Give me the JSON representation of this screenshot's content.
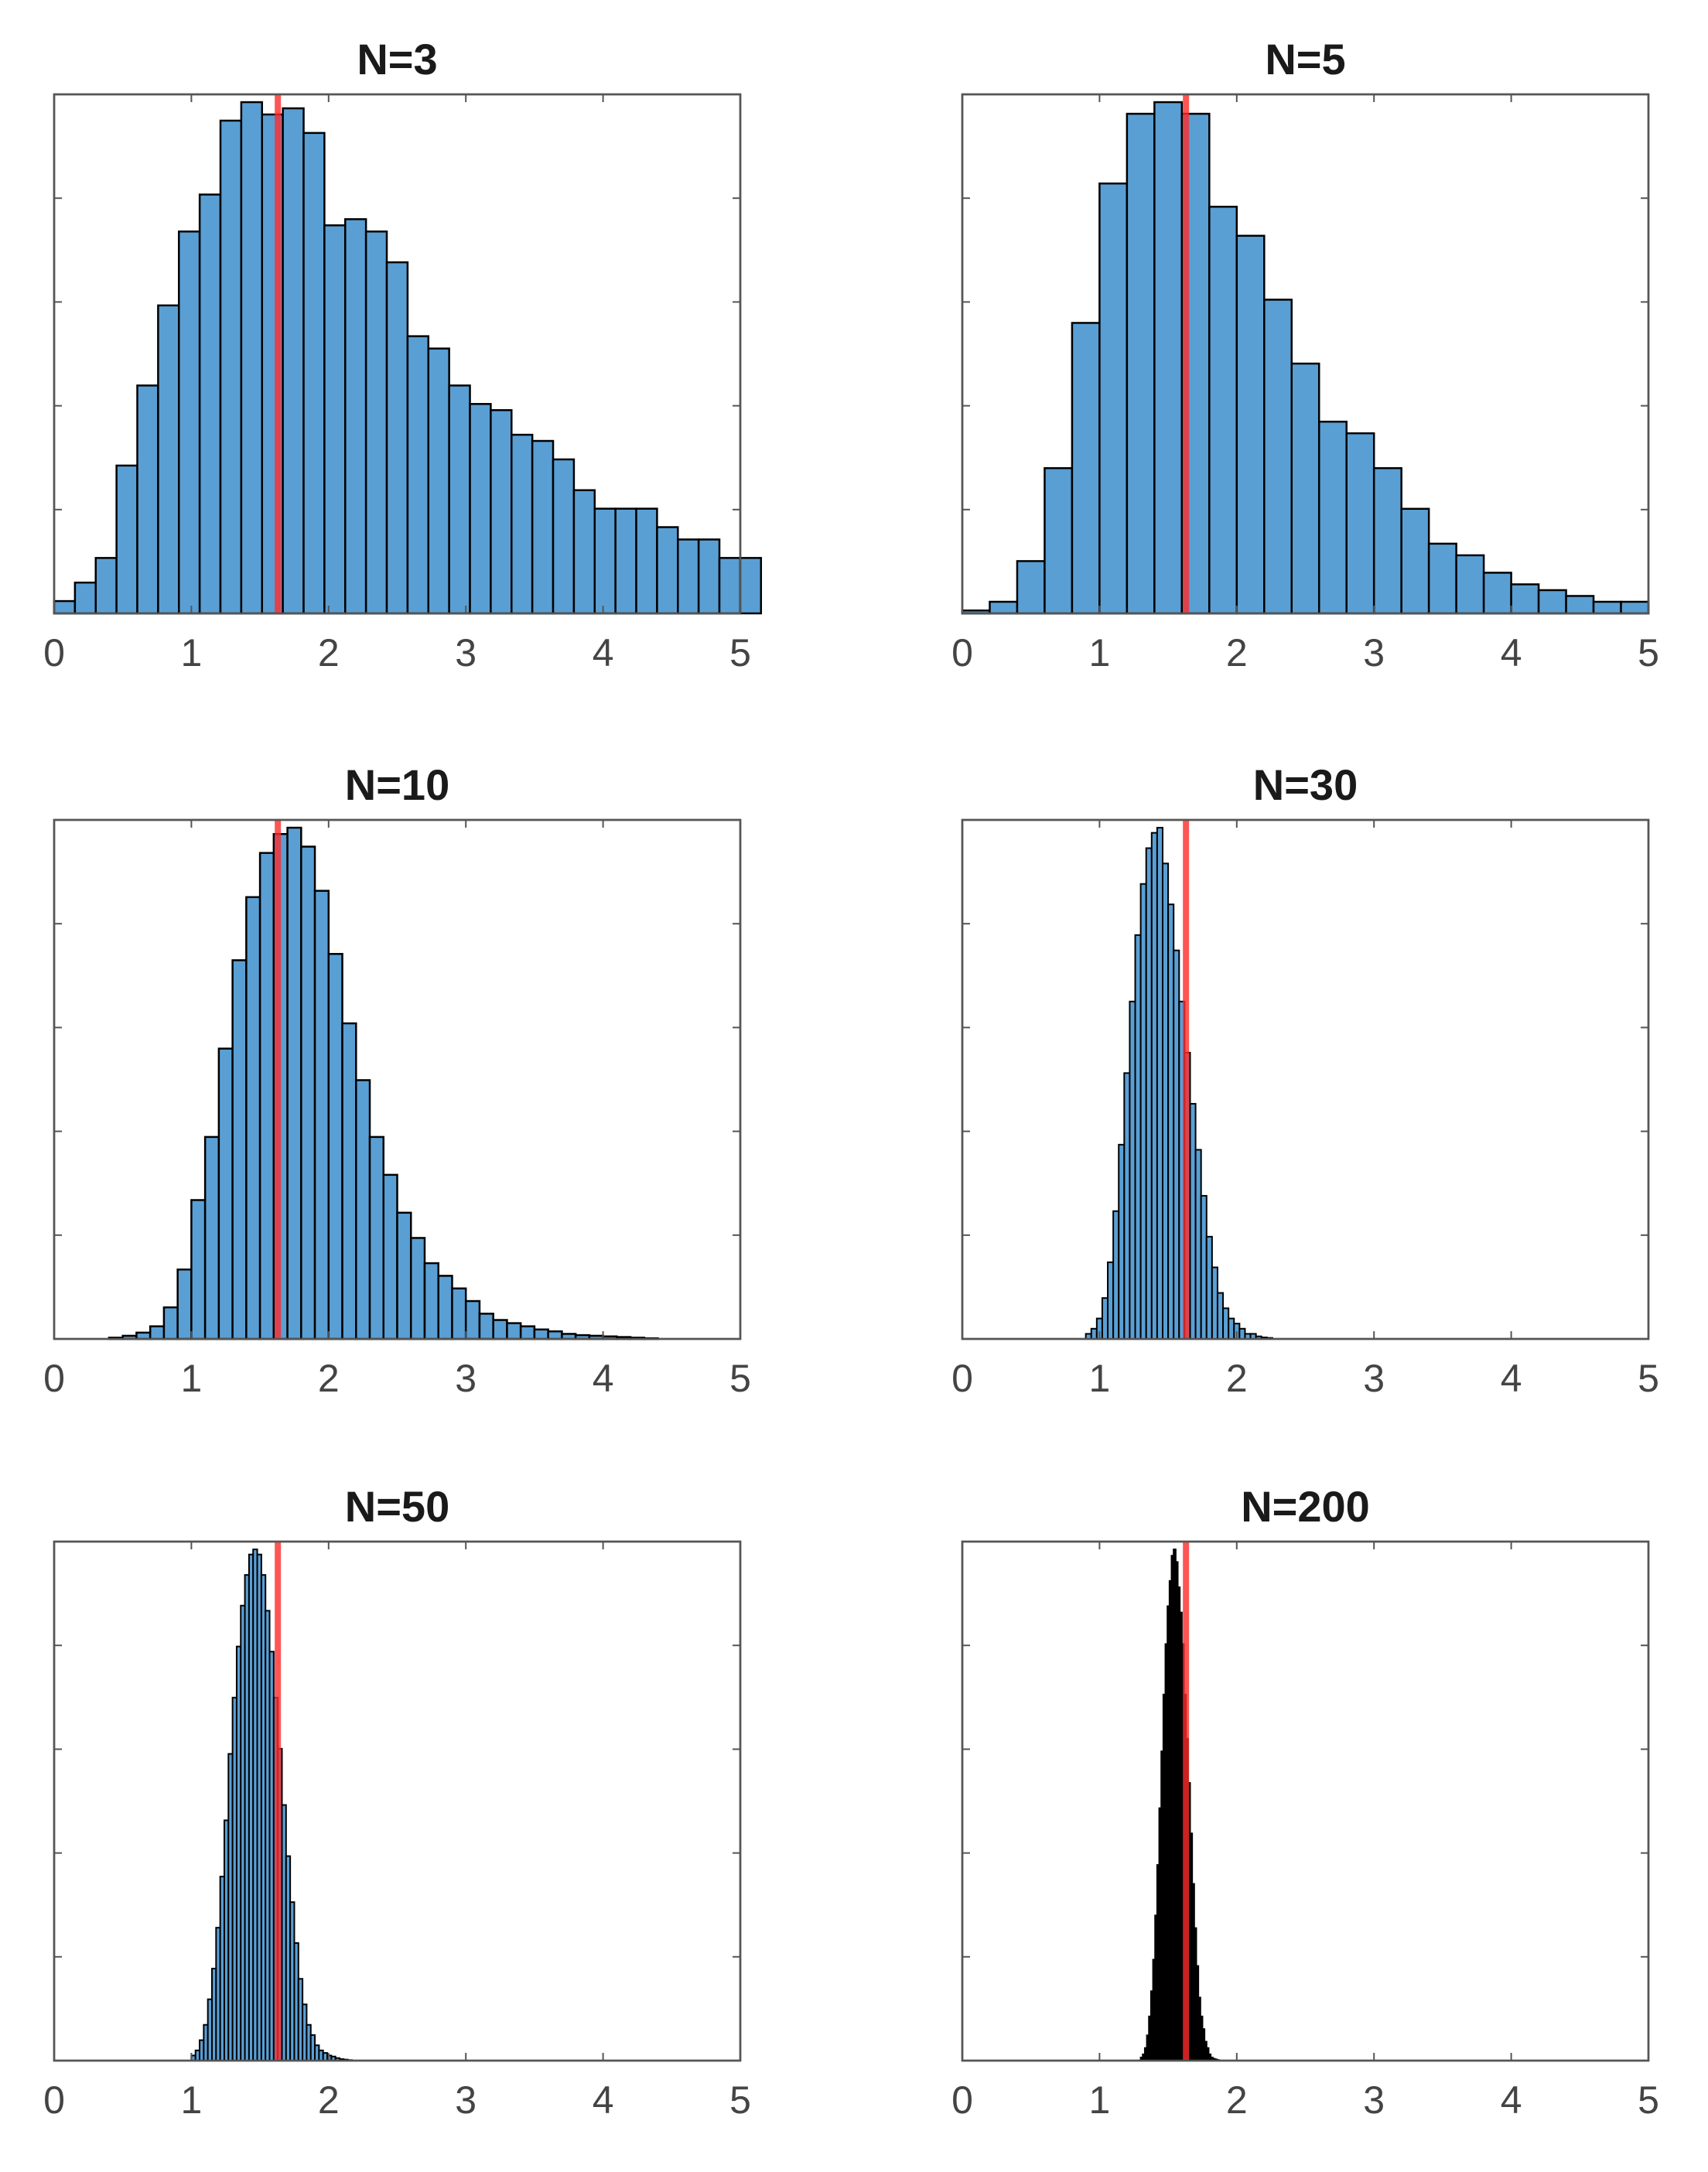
{
  "chart_data": {
    "type": "bar",
    "description_kind": "histogram grid",
    "xlim": [
      0,
      5
    ],
    "xticks": [
      "0",
      "1",
      "2",
      "3",
      "4",
      "5"
    ],
    "yticks_labeled": false,
    "bar_color": "#5a9fd4",
    "edge_color": "#000000",
    "mean_line_color": "#ff2a2a",
    "mean_value": 1.63,
    "panels": [
      {
        "title": "N=3",
        "bin_start": 0,
        "bin_width": 0.1515,
        "values": [
          0.02,
          0.05,
          0.09,
          0.24,
          0.37,
          0.5,
          0.62,
          0.68,
          0.8,
          0.83,
          0.81,
          0.82,
          0.78,
          0.63,
          0.64,
          0.62,
          0.57,
          0.45,
          0.43,
          0.37,
          0.34,
          0.33,
          0.29,
          0.28,
          0.25,
          0.2,
          0.17,
          0.17,
          0.17,
          0.14,
          0.12,
          0.12,
          0.09,
          0.09
        ]
      },
      {
        "title": "N=5",
        "bin_start": 0,
        "bin_width": 0.2,
        "values": [
          0.005,
          0.02,
          0.09,
          0.25,
          0.5,
          0.74,
          0.86,
          0.88,
          0.86,
          0.7,
          0.65,
          0.54,
          0.43,
          0.33,
          0.31,
          0.25,
          0.18,
          0.12,
          0.1,
          0.07,
          0.05,
          0.04,
          0.03,
          0.02,
          0.02
        ]
      },
      {
        "title": "N=10",
        "bin_start": 0.4,
        "bin_width": 0.1,
        "values": [
          0.002,
          0.005,
          0.01,
          0.02,
          0.05,
          0.11,
          0.22,
          0.32,
          0.46,
          0.6,
          0.7,
          0.77,
          0.8,
          0.81,
          0.78,
          0.71,
          0.61,
          0.5,
          0.41,
          0.32,
          0.26,
          0.2,
          0.16,
          0.12,
          0.1,
          0.08,
          0.06,
          0.04,
          0.03,
          0.025,
          0.02,
          0.015,
          0.012,
          0.008,
          0.006,
          0.005,
          0.004,
          0.003,
          0.002,
          0.001
        ]
      },
      {
        "title": "N=30",
        "bin_start": 0.9,
        "bin_width": 0.04,
        "values": [
          0.01,
          0.02,
          0.04,
          0.08,
          0.15,
          0.25,
          0.38,
          0.52,
          0.66,
          0.79,
          0.89,
          0.96,
          0.99,
          1.0,
          0.93,
          0.85,
          0.76,
          0.66,
          0.56,
          0.46,
          0.37,
          0.28,
          0.2,
          0.14,
          0.09,
          0.06,
          0.04,
          0.03,
          0.02,
          0.01,
          0.01,
          0.005,
          0.003,
          0.002
        ]
      },
      {
        "title": "N=50",
        "bin_start": 1.0,
        "bin_width": 0.03,
        "values": [
          0.01,
          0.02,
          0.04,
          0.07,
          0.12,
          0.18,
          0.26,
          0.36,
          0.47,
          0.6,
          0.71,
          0.81,
          0.89,
          0.95,
          0.99,
          1.0,
          0.99,
          0.95,
          0.88,
          0.8,
          0.71,
          0.61,
          0.5,
          0.4,
          0.31,
          0.23,
          0.16,
          0.11,
          0.07,
          0.05,
          0.03,
          0.02,
          0.015,
          0.01,
          0.008,
          0.005,
          0.003,
          0.002,
          0.001
        ]
      },
      {
        "title": "N=200",
        "bin_start": 1.3,
        "bin_width": 0.015,
        "values": [
          0.005,
          0.01,
          0.02,
          0.04,
          0.07,
          0.11,
          0.16,
          0.23,
          0.31,
          0.4,
          0.49,
          0.58,
          0.66,
          0.72,
          0.76,
          0.8,
          0.81,
          0.79,
          0.75,
          0.71,
          0.66,
          0.58,
          0.51,
          0.44,
          0.36,
          0.28,
          0.21,
          0.15,
          0.1,
          0.07,
          0.05,
          0.03,
          0.02,
          0.01,
          0.005,
          0.003,
          0.002,
          0.001
        ]
      }
    ]
  }
}
